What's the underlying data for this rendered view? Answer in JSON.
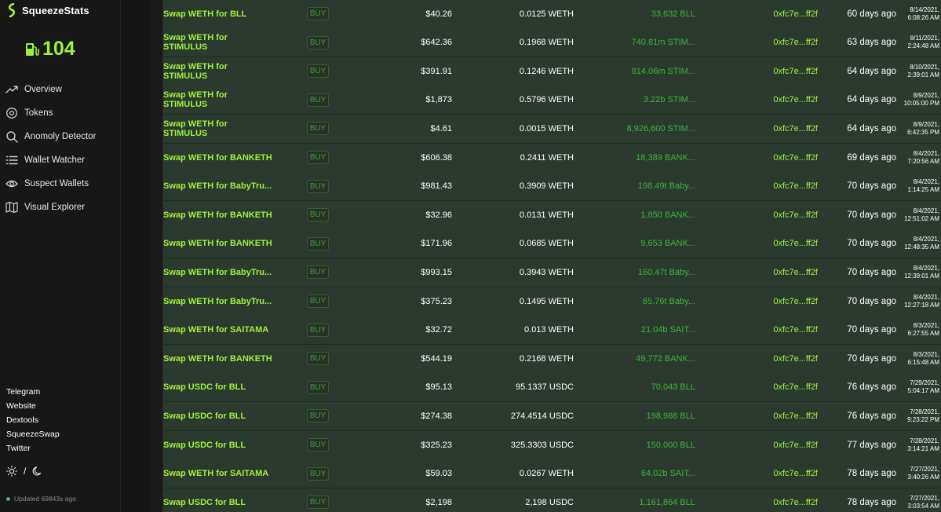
{
  "app": {
    "name": "SqueezeStats"
  },
  "gas": {
    "value": "104"
  },
  "nav": [
    {
      "label": "Overview",
      "icon": "trending-up-icon"
    },
    {
      "label": "Tokens",
      "icon": "token-icon"
    },
    {
      "label": "Anomoly Detector",
      "icon": "search-icon"
    },
    {
      "label": "Wallet Watcher",
      "icon": "list-icon"
    },
    {
      "label": "Suspect Wallets",
      "icon": "eye-icon"
    },
    {
      "label": "Visual Explorer",
      "icon": "map-icon"
    }
  ],
  "links": [
    "Telegram",
    "Website",
    "Dextools",
    "SqueezeSwap",
    "Twitter"
  ],
  "theme": {
    "separator": "/"
  },
  "status": {
    "updated": "Updated 69843s ago"
  },
  "colors": {
    "accent": "#9ef23f",
    "row_bg": "#2b3a2e",
    "token_green": "#3db53a"
  },
  "rows": [
    {
      "desc": "Swap WETH for BLL",
      "type": "BUY",
      "usd": "$40.26",
      "amount": "0.0125 WETH",
      "tokens": "33,632 BLL",
      "wallet": "0xfc7e...ff2f",
      "ago": "60 days ago",
      "date": "8/14/2021,",
      "time": "6:08:26 AM"
    },
    {
      "desc": "Swap WETH for STIMULUS",
      "type": "BUY",
      "usd": "$642.36",
      "amount": "0.1968 WETH",
      "tokens": "740.81m STIM...",
      "wallet": "0xfc7e...ff2f",
      "ago": "63 days ago",
      "date": "8/11/2021,",
      "time": "2:24:48 AM"
    },
    {
      "desc": "Swap WETH for STIMULUS",
      "type": "BUY",
      "usd": "$391.91",
      "amount": "0.1246 WETH",
      "tokens": "814.06m STIM...",
      "wallet": "0xfc7e...ff2f",
      "ago": "64 days ago",
      "date": "8/10/2021,",
      "time": "2:39:01 AM"
    },
    {
      "desc": "Swap WETH for STIMULUS",
      "type": "BUY",
      "usd": "$1,873",
      "amount": "0.5796 WETH",
      "tokens": "3.22b STIM...",
      "wallet": "0xfc7e...ff2f",
      "ago": "64 days ago",
      "date": "8/9/2021,",
      "time": "10:05:00 PM"
    },
    {
      "desc": "Swap WETH for STIMULUS",
      "type": "BUY",
      "usd": "$4.61",
      "amount": "0.0015 WETH",
      "tokens": "8,926,600 STIM...",
      "wallet": "0xfc7e...ff2f",
      "ago": "64 days ago",
      "date": "8/9/2021,",
      "time": "6:42:35 PM"
    },
    {
      "desc": "Swap WETH for BANKETH",
      "type": "BUY",
      "usd": "$606.38",
      "amount": "0.2411 WETH",
      "tokens": "18,389 BANK...",
      "wallet": "0xfc7e...ff2f",
      "ago": "69 days ago",
      "date": "8/4/2021,",
      "time": "7:20:56 AM"
    },
    {
      "desc": "Swap WETH for BabyTru...",
      "type": "BUY",
      "usd": "$981.43",
      "amount": "0.3909 WETH",
      "tokens": "198.49t Baby...",
      "wallet": "0xfc7e...ff2f",
      "ago": "70 days ago",
      "date": "8/4/2021,",
      "time": "1:14:25 AM"
    },
    {
      "desc": "Swap WETH for BANKETH",
      "type": "BUY",
      "usd": "$32.96",
      "amount": "0.0131 WETH",
      "tokens": "1,850 BANK...",
      "wallet": "0xfc7e...ff2f",
      "ago": "70 days ago",
      "date": "8/4/2021,",
      "time": "12:51:02 AM"
    },
    {
      "desc": "Swap WETH for BANKETH",
      "type": "BUY",
      "usd": "$171.96",
      "amount": "0.0685 WETH",
      "tokens": "9,653 BANK...",
      "wallet": "0xfc7e...ff2f",
      "ago": "70 days ago",
      "date": "8/4/2021,",
      "time": "12:48:35 AM"
    },
    {
      "desc": "Swap WETH for BabyTru...",
      "type": "BUY",
      "usd": "$993.15",
      "amount": "0.3943 WETH",
      "tokens": "160.47t Baby...",
      "wallet": "0xfc7e...ff2f",
      "ago": "70 days ago",
      "date": "8/4/2021,",
      "time": "12:39:01 AM"
    },
    {
      "desc": "Swap WETH for BabyTru...",
      "type": "BUY",
      "usd": "$375.23",
      "amount": "0.1495 WETH",
      "tokens": "65.76t Baby...",
      "wallet": "0xfc7e...ff2f",
      "ago": "70 days ago",
      "date": "8/4/2021,",
      "time": "12:27:18 AM"
    },
    {
      "desc": "Swap WETH for SAITAMA",
      "type": "BUY",
      "usd": "$32.72",
      "amount": "0.013 WETH",
      "tokens": "21.04b SAIT...",
      "wallet": "0xfc7e...ff2f",
      "ago": "70 days ago",
      "date": "8/3/2021,",
      "time": "6:27:55 AM"
    },
    {
      "desc": "Swap WETH for BANKETH",
      "type": "BUY",
      "usd": "$544.19",
      "amount": "0.2168 WETH",
      "tokens": "49,772 BANK...",
      "wallet": "0xfc7e...ff2f",
      "ago": "70 days ago",
      "date": "8/3/2021,",
      "time": "6:15:48 AM"
    },
    {
      "desc": "Swap USDC for BLL",
      "type": "BUY",
      "usd": "$95.13",
      "amount": "95.1337 USDC",
      "tokens": "70,043 BLL",
      "wallet": "0xfc7e...ff2f",
      "ago": "76 days ago",
      "date": "7/29/2021,",
      "time": "5:04:17 AM"
    },
    {
      "desc": "Swap USDC for BLL",
      "type": "BUY",
      "usd": "$274.38",
      "amount": "274.4514 USDC",
      "tokens": "198,986 BLL",
      "wallet": "0xfc7e...ff2f",
      "ago": "76 days ago",
      "date": "7/28/2021,",
      "time": "9:23:22 PM"
    },
    {
      "desc": "Swap USDC for BLL",
      "type": "BUY",
      "usd": "$325.23",
      "amount": "325.3303 USDC",
      "tokens": "150,000 BLL",
      "wallet": "0xfc7e...ff2f",
      "ago": "77 days ago",
      "date": "7/28/2021,",
      "time": "3:14:21 AM"
    },
    {
      "desc": "Swap WETH for SAITAMA",
      "type": "BUY",
      "usd": "$59.03",
      "amount": "0.0267 WETH",
      "tokens": "64.02b SAIT...",
      "wallet": "0xfc7e...ff2f",
      "ago": "78 days ago",
      "date": "7/27/2021,",
      "time": "3:40:26 AM"
    },
    {
      "desc": "Swap USDC for BLL",
      "type": "BUY",
      "usd": "$2,198",
      "amount": "2,198 USDC",
      "tokens": "1,161,864 BLL",
      "wallet": "0xfc7e...ff2f",
      "ago": "78 days ago",
      "date": "7/27/2021,",
      "time": "3:03:54 AM"
    }
  ]
}
